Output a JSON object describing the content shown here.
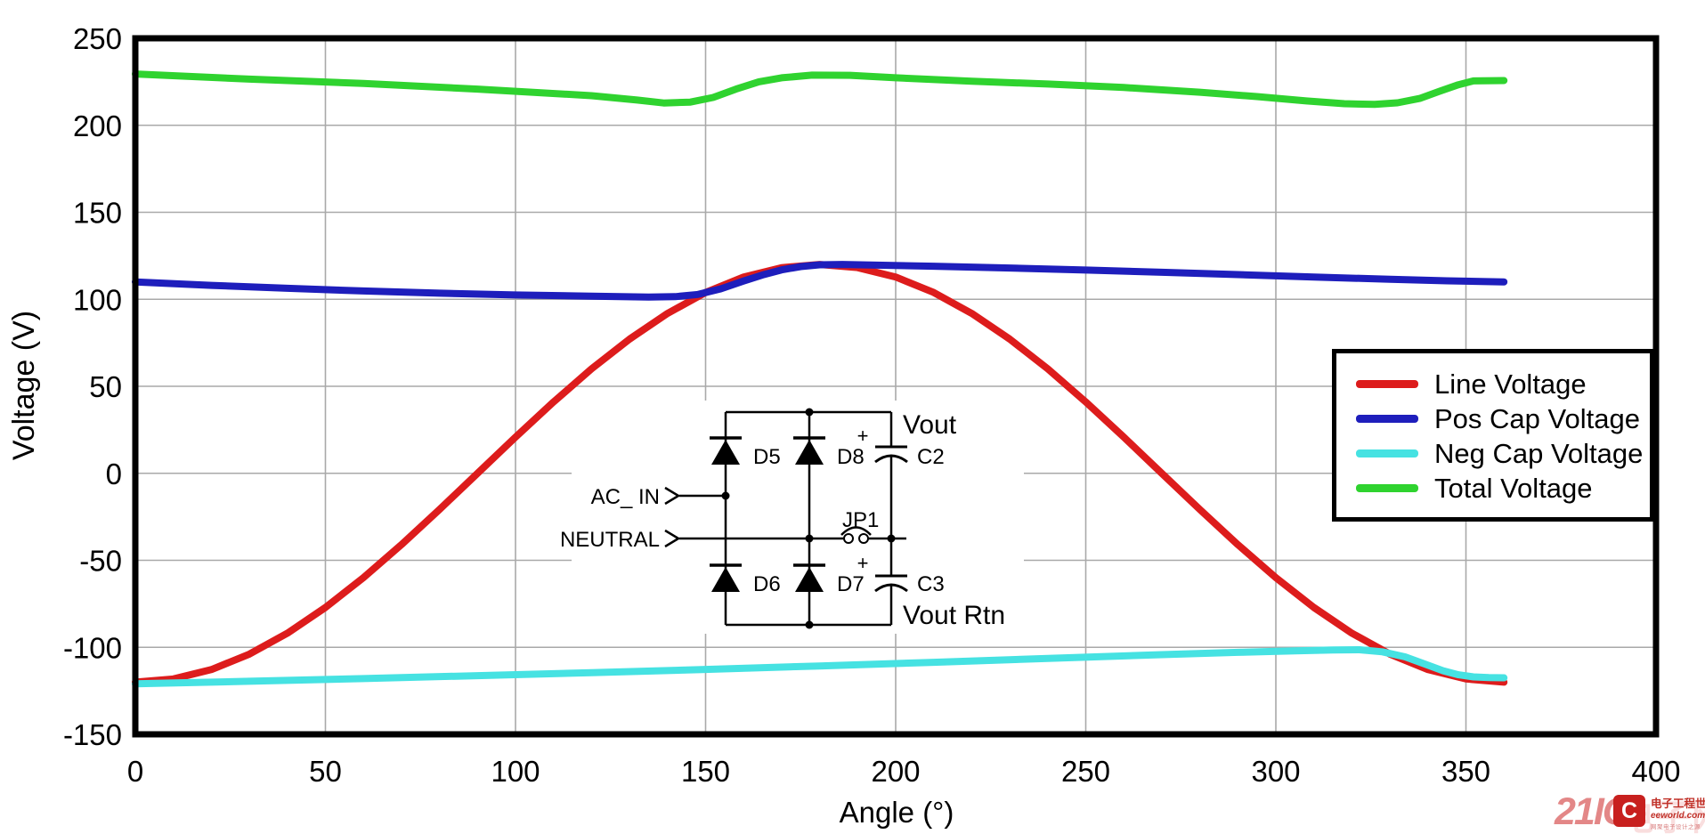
{
  "figure": {
    "background": "#ffffff"
  },
  "chart_data": {
    "type": "line",
    "title": "",
    "xlabel": "Angle (°)",
    "ylabel": "Voltage (V)",
    "xlim": [
      0,
      400
    ],
    "ylim": [
      -150,
      250
    ],
    "x_ticks": [
      0,
      50,
      100,
      150,
      200,
      250,
      300,
      350,
      400
    ],
    "y_ticks": [
      250,
      200,
      150,
      100,
      50,
      0,
      -50,
      -100,
      -150
    ],
    "grid": true,
    "grid_color": "#a9a9a9",
    "legend_position": "middle-right",
    "series": [
      {
        "name": "Line Voltage",
        "color": "#dd1c1c",
        "points": [
          [
            0,
            -120
          ],
          [
            10,
            -118.2
          ],
          [
            20,
            -112.8
          ],
          [
            30,
            -103.9
          ],
          [
            40,
            -91.9
          ],
          [
            50,
            -77.1
          ],
          [
            60,
            -60
          ],
          [
            70,
            -41
          ],
          [
            80,
            -20.8
          ],
          [
            90,
            0
          ],
          [
            100,
            20.8
          ],
          [
            110,
            41
          ],
          [
            120,
            60
          ],
          [
            130,
            77.1
          ],
          [
            140,
            91.9
          ],
          [
            150,
            103.9
          ],
          [
            160,
            112.8
          ],
          [
            170,
            118.2
          ],
          [
            180,
            120
          ],
          [
            190,
            118.2
          ],
          [
            200,
            112.8
          ],
          [
            210,
            103.9
          ],
          [
            220,
            91.9
          ],
          [
            230,
            77.1
          ],
          [
            240,
            60
          ],
          [
            250,
            41
          ],
          [
            260,
            20.8
          ],
          [
            270,
            0
          ],
          [
            280,
            -20.8
          ],
          [
            290,
            -41
          ],
          [
            300,
            -60
          ],
          [
            310,
            -77.1
          ],
          [
            320,
            -91.9
          ],
          [
            330,
            -103.9
          ],
          [
            340,
            -112.8
          ],
          [
            350,
            -118.2
          ],
          [
            360,
            -120
          ]
        ]
      },
      {
        "name": "Pos Cap Voltage",
        "color": "#1e1ebc",
        "points": [
          [
            0,
            110
          ],
          [
            20,
            108
          ],
          [
            40,
            106.3
          ],
          [
            60,
            104.8
          ],
          [
            80,
            103.5
          ],
          [
            100,
            102.5
          ],
          [
            120,
            101.8
          ],
          [
            135,
            101.3
          ],
          [
            142,
            101.5
          ],
          [
            148,
            102.8
          ],
          [
            154,
            106
          ],
          [
            160,
            110.5
          ],
          [
            165,
            114
          ],
          [
            170,
            116.9
          ],
          [
            175,
            118.8
          ],
          [
            180,
            119.8
          ],
          [
            186,
            120
          ],
          [
            195,
            119.6
          ],
          [
            210,
            119
          ],
          [
            230,
            118
          ],
          [
            250,
            116.8
          ],
          [
            270,
            115.5
          ],
          [
            290,
            114.2
          ],
          [
            310,
            112.8
          ],
          [
            330,
            111.5
          ],
          [
            345,
            110.6
          ],
          [
            360,
            110
          ]
        ]
      },
      {
        "name": "Neg Cap Voltage",
        "color": "#46e2e2",
        "points": [
          [
            0,
            -121
          ],
          [
            30,
            -119.5
          ],
          [
            60,
            -118
          ],
          [
            90,
            -116.3
          ],
          [
            120,
            -114.6
          ],
          [
            150,
            -112.7
          ],
          [
            180,
            -110.7
          ],
          [
            210,
            -108.6
          ],
          [
            240,
            -106.4
          ],
          [
            270,
            -104.2
          ],
          [
            290,
            -102.9
          ],
          [
            305,
            -102
          ],
          [
            315,
            -101.5
          ],
          [
            322,
            -101.4
          ],
          [
            328,
            -102.6
          ],
          [
            334,
            -105.5
          ],
          [
            339,
            -109.5
          ],
          [
            344,
            -113.5
          ],
          [
            348,
            -115.8
          ],
          [
            352,
            -117
          ],
          [
            356,
            -117.4
          ],
          [
            360,
            -117.5
          ]
        ]
      },
      {
        "name": "Total Voltage",
        "color": "#2fd32f",
        "points": [
          [
            0,
            229.5
          ],
          [
            30,
            226.5
          ],
          [
            60,
            224
          ],
          [
            90,
            220.8
          ],
          [
            120,
            217
          ],
          [
            132,
            214.5
          ],
          [
            139,
            212.8
          ],
          [
            146,
            213.3
          ],
          [
            152,
            216
          ],
          [
            158,
            220.8
          ],
          [
            164,
            225
          ],
          [
            170,
            227.3
          ],
          [
            178,
            228.8
          ],
          [
            188,
            228.7
          ],
          [
            200,
            227.3
          ],
          [
            220,
            225.3
          ],
          [
            240,
            223.7
          ],
          [
            260,
            221.7
          ],
          [
            280,
            219
          ],
          [
            295,
            216.5
          ],
          [
            308,
            214
          ],
          [
            318,
            212.4
          ],
          [
            326,
            212
          ],
          [
            332,
            212.9
          ],
          [
            338,
            215.5
          ],
          [
            343,
            219.5
          ],
          [
            348,
            223.3
          ],
          [
            352,
            225.5
          ],
          [
            360,
            225.7
          ]
        ]
      }
    ]
  },
  "circuit": {
    "labels": {
      "ac_in": "AC_ IN",
      "neutral": "NEUTRAL",
      "jp1": "JP1",
      "d5": "D5",
      "d6": "D6",
      "d7": "D7",
      "d8": "D8",
      "c2": "C2",
      "c3": "C3",
      "vout": "Vout",
      "vout_rtn": "Vout Rtn",
      "plus": "+"
    }
  },
  "watermark": {
    "brand": "21IC",
    "ghost_text": "电子网",
    "logo_letter": "C",
    "site_name": "电子工程世界",
    "site_url": "eeworld.com.cn",
    "tagline": "网聚电子设计之源"
  }
}
